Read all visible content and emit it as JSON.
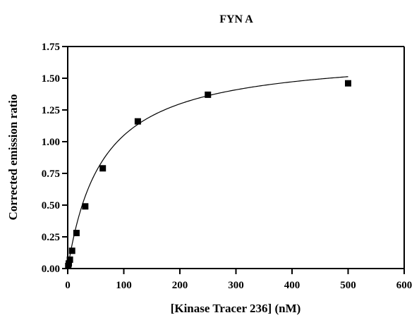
{
  "chart_data": {
    "type": "scatter",
    "title": "FYN A",
    "xlabel": "[Kinase Tracer 236] (nM)",
    "ylabel": "Corrected emission ratio",
    "xlim": [
      0,
      600
    ],
    "ylim": [
      0,
      1.75
    ],
    "x_ticks": [
      "0",
      "100",
      "200",
      "300",
      "400",
      "500",
      "600"
    ],
    "y_ticks": [
      "0.00",
      "0.25",
      "0.50",
      "0.75",
      "1.00",
      "1.25",
      "1.50",
      "1.75"
    ],
    "grid": false,
    "legend": "none",
    "series": [
      {
        "marker": "square",
        "color": "#000000",
        "points": [
          {
            "x": 0.98,
            "y": 0.02
          },
          {
            "x": 1.95,
            "y": 0.04
          },
          {
            "x": 3.9,
            "y": 0.07
          },
          {
            "x": 7.8,
            "y": 0.14
          },
          {
            "x": 15.6,
            "y": 0.28
          },
          {
            "x": 31.25,
            "y": 0.49
          },
          {
            "x": 62.5,
            "y": 0.79
          },
          {
            "x": 125,
            "y": 1.16
          },
          {
            "x": 250,
            "y": 1.37
          },
          {
            "x": 500,
            "y": 1.46
          }
        ]
      }
    ],
    "fit_curve": {
      "model": "one-site binding",
      "color": "#000000",
      "x_range": [
        0,
        500
      ],
      "bmax": 1.7,
      "kd": 62
    }
  }
}
